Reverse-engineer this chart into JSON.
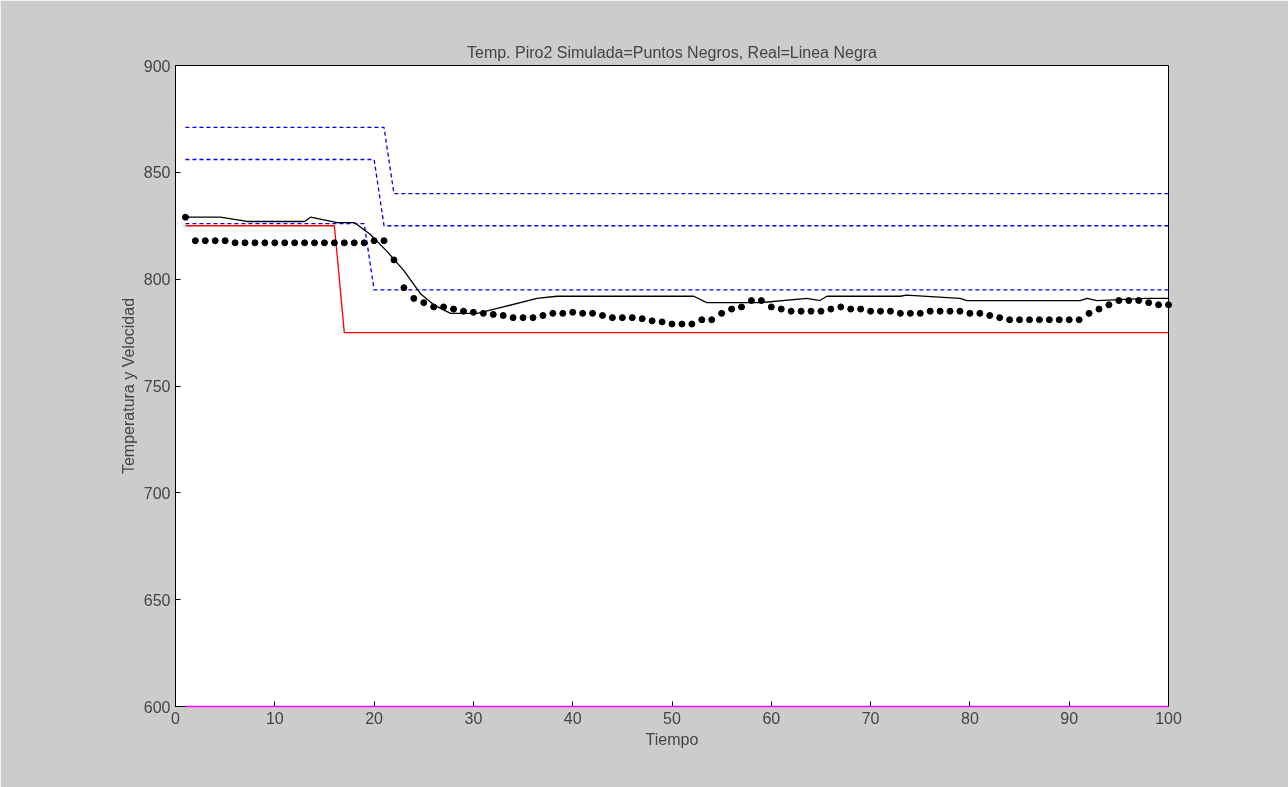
{
  "chart_data": {
    "type": "line",
    "title": "Temp. Piro2 Simulada=Puntos Negros, Real=Linea Negra",
    "xlabel": "Tiempo",
    "ylabel": "Temperatura y Velocidad",
    "xlim": [
      0,
      100
    ],
    "ylim": [
      600,
      900
    ],
    "xticks": [
      0,
      10,
      20,
      30,
      40,
      50,
      60,
      70,
      80,
      90,
      100
    ],
    "yticks": [
      600,
      650,
      700,
      750,
      800,
      850,
      900
    ],
    "grid": false,
    "series": [
      {
        "color": "#0000ff",
        "line_style": "dashed",
        "x": [
          1,
          21,
          22,
          100
        ],
        "values": [
          871,
          871,
          840,
          840
        ]
      },
      {
        "color": "#0000ff",
        "line_style": "dashed",
        "x": [
          1,
          20,
          21,
          100
        ],
        "values": [
          856,
          856,
          825,
          825
        ]
      },
      {
        "color": "#0000ff",
        "line_style": "dashed",
        "x": [
          1,
          19,
          20,
          100
        ],
        "values": [
          826,
          826,
          795,
          795
        ]
      },
      {
        "color": "#ff0000",
        "line_style": "solid",
        "x": [
          1,
          16,
          17,
          100
        ],
        "values": [
          825,
          825,
          775,
          775
        ]
      },
      {
        "color": "#ff00ff",
        "line_style": "solid",
        "x": [
          1,
          100
        ],
        "values": [
          600,
          600
        ]
      },
      {
        "color": "#000000",
        "line_style": "solid",
        "x": [
          1,
          4.5,
          7.2,
          13,
          13.6,
          16.3,
          18,
          19.6,
          21.3,
          23,
          24.7,
          26,
          27.7,
          30.4,
          33,
          36.4,
          38.4,
          49.2,
          52.2,
          53.5,
          58.9,
          63.6,
          64.9,
          65.6,
          73,
          73.6,
          79,
          79.7,
          91.1,
          91.8,
          92.8,
          97.8,
          100
        ],
        "values": [
          829,
          829,
          827,
          827,
          829,
          826.5,
          826.5,
          821,
          813,
          804,
          793,
          788,
          784,
          784,
          787,
          791,
          792,
          792,
          792,
          789,
          789,
          791,
          790,
          792,
          792,
          792.5,
          791,
          790,
          790,
          791,
          790,
          791,
          791
        ]
      },
      {
        "type": "scatter",
        "color": "#000000",
        "marker": "circle",
        "x": [
          1,
          2,
          3,
          4,
          5,
          6,
          7,
          8,
          9,
          10,
          11,
          12,
          13,
          14,
          15,
          16,
          17,
          18,
          19,
          20,
          21,
          22,
          23,
          24,
          25,
          26,
          27,
          28,
          29,
          30,
          31,
          32,
          33,
          34,
          35,
          36,
          37,
          38,
          39,
          40,
          41,
          42,
          43,
          44,
          45,
          46,
          47,
          48,
          49,
          50,
          51,
          52,
          53,
          54,
          55,
          56,
          57,
          58,
          59,
          60,
          61,
          62,
          63,
          64,
          65,
          66,
          67,
          68,
          69,
          70,
          71,
          72,
          73,
          74,
          75,
          76,
          77,
          78,
          79,
          80,
          81,
          82,
          83,
          84,
          85,
          86,
          87,
          88,
          89,
          90,
          91,
          92,
          93,
          94,
          95,
          96,
          97,
          98,
          99,
          100
        ],
        "values": [
          829,
          818,
          818,
          818,
          818,
          817,
          817,
          817,
          817,
          817,
          817,
          817,
          817,
          817,
          817,
          817,
          817,
          817,
          817,
          818,
          818,
          809,
          796,
          791,
          789,
          787,
          787,
          786,
          785,
          784.5,
          784,
          783.5,
          783,
          782,
          782,
          782,
          783,
          784,
          784,
          784.5,
          784,
          784,
          783,
          782,
          782,
          782,
          781.5,
          780.5,
          780,
          779,
          779,
          779,
          781,
          781,
          784,
          786,
          787,
          790,
          790,
          787,
          786,
          785,
          785,
          785,
          785,
          786,
          787,
          786,
          786,
          785,
          785,
          785,
          784,
          784,
          784,
          785,
          785,
          785,
          785,
          784,
          784,
          783,
          782,
          781,
          781,
          781,
          781,
          781,
          781,
          781,
          781,
          784,
          786,
          788,
          790,
          790,
          790,
          789,
          788,
          788
        ]
      }
    ]
  }
}
